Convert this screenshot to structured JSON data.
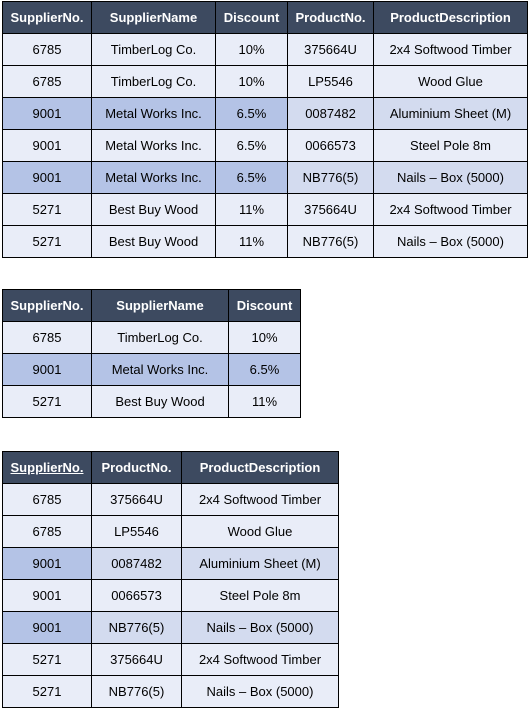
{
  "table1": {
    "headers": [
      "SupplierNo.",
      "SupplierName",
      "Discount",
      "ProductNo.",
      "ProductDescription"
    ],
    "rows": [
      [
        "6785",
        "TimberLog Co.",
        "10%",
        "375664U",
        "2x4 Softwood Timber"
      ],
      [
        "6785",
        "TimberLog Co.",
        "10%",
        "LP5546",
        "Wood Glue"
      ],
      [
        "9001",
        "Metal Works Inc.",
        "6.5%",
        "0087482",
        "Aluminium Sheet (M)"
      ],
      [
        "9001",
        "Metal Works Inc.",
        "6.5%",
        "0066573",
        "Steel Pole 8m"
      ],
      [
        "9001",
        "Metal Works Inc.",
        "6.5%",
        "NB776(5)",
        "Nails – Box (5000)"
      ],
      [
        "5271",
        "Best Buy Wood",
        "11%",
        "375664U",
        "2x4 Softwood Timber"
      ],
      [
        "5271",
        "Best Buy Wood",
        "11%",
        "NB776(5)",
        "Nails – Box (5000)"
      ]
    ]
  },
  "table2": {
    "headers": [
      "SupplierNo.",
      "SupplierName",
      "Discount"
    ],
    "rows": [
      [
        "6785",
        "TimberLog Co.",
        "10%"
      ],
      [
        "9001",
        "Metal Works Inc.",
        "6.5%"
      ],
      [
        "5271",
        "Best Buy Wood",
        "11%"
      ]
    ]
  },
  "table3": {
    "headers": [
      "SupplierNo.",
      "ProductNo.",
      "ProductDescription"
    ],
    "rows": [
      [
        "6785",
        "375664U",
        "2x4 Softwood Timber"
      ],
      [
        "6785",
        "LP5546",
        "Wood Glue"
      ],
      [
        "9001",
        "0087482",
        "Aluminium Sheet (M)"
      ],
      [
        "9001",
        "0066573",
        "Steel Pole 8m"
      ],
      [
        "9001",
        "NB776(5)",
        "Nails – Box (5000)"
      ],
      [
        "5271",
        "375664U",
        "2x4 Softwood Timber"
      ],
      [
        "5271",
        "NB776(5)",
        "Nails – Box (5000)"
      ]
    ]
  },
  "colors": {
    "header_bg": "#3d4a60",
    "row_odd": "#d3dbef",
    "row_even": "#e9edf8",
    "key_highlight": "#b4c3e6"
  }
}
